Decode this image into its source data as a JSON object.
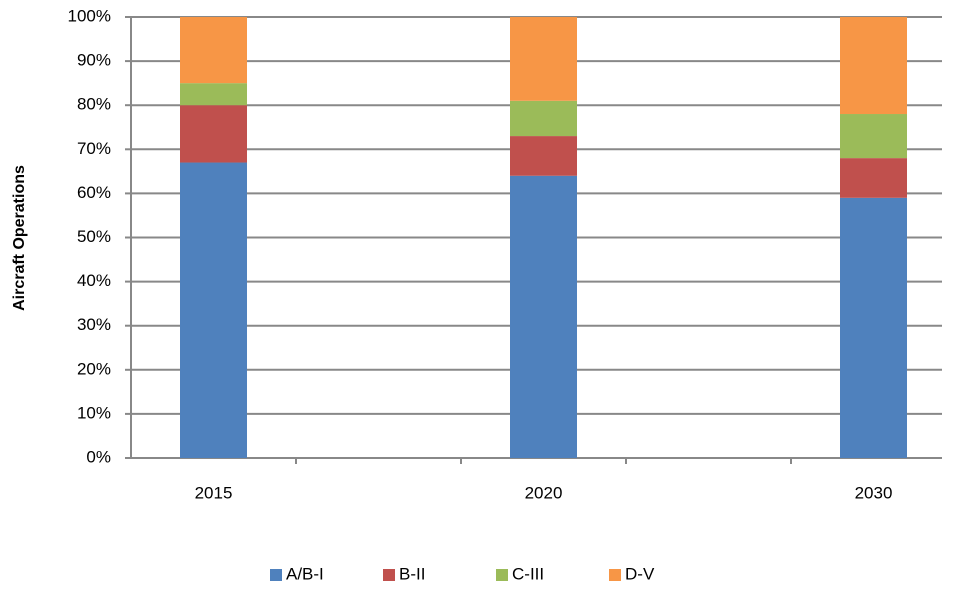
{
  "chart_data": {
    "type": "stacked_bar",
    "y_label": "Aircraft Operations",
    "categories": [
      "2015",
      null,
      "2020",
      null,
      "2030"
    ],
    "series": [
      {
        "name": "A/B-I",
        "color": "#4f81bd",
        "values": [
          67,
          null,
          64,
          null,
          59
        ]
      },
      {
        "name": "B-II",
        "color": "#c0504d",
        "values": [
          13,
          null,
          9,
          null,
          9
        ]
      },
      {
        "name": "C-III",
        "color": "#9bbb59",
        "values": [
          5,
          null,
          8,
          null,
          10
        ]
      },
      {
        "name": "D-V",
        "color": "#f79646",
        "values": [
          15,
          null,
          19,
          null,
          22
        ]
      }
    ],
    "ylim": [
      0,
      100
    ],
    "yticks": [
      {
        "value": 0,
        "label": "0%"
      },
      {
        "value": 10,
        "label": "10%"
      },
      {
        "value": 20,
        "label": "20%"
      },
      {
        "value": 30,
        "label": "30%"
      },
      {
        "value": 40,
        "label": "40%"
      },
      {
        "value": 50,
        "label": "50%"
      },
      {
        "value": 60,
        "label": "60%"
      },
      {
        "value": 70,
        "label": "70%"
      },
      {
        "value": 80,
        "label": "80%"
      },
      {
        "value": 90,
        "label": "90%"
      },
      {
        "value": 100,
        "label": "100%"
      }
    ],
    "grid": true,
    "legend": "bottom"
  }
}
